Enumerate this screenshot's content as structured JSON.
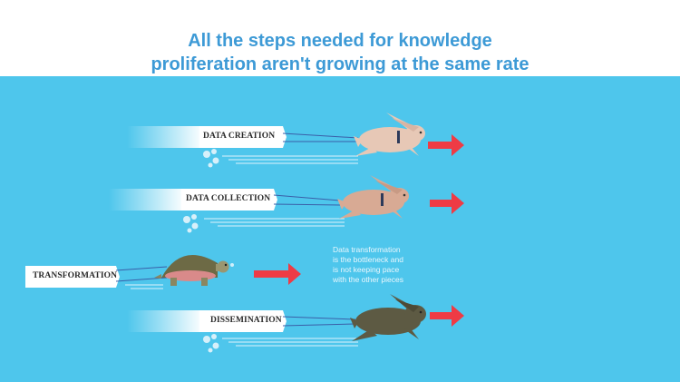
{
  "title": {
    "line1": "All the steps needed for knowledge",
    "line2": "proliferation aren't growing at the same rate"
  },
  "steps": [
    {
      "label": "DATA CREATION",
      "animal": "rabbit-icon",
      "color": "#e7c8b6"
    },
    {
      "label": "DATA COLLECTION",
      "animal": "rabbit-icon",
      "color": "#d8aa94"
    },
    {
      "label": "TRANSFORMATION",
      "animal": "tortoise-icon",
      "color": "#6d6a45"
    },
    {
      "label": "DISSEMINATION",
      "animal": "rabbit-icon",
      "color": "#5d5a43"
    }
  ],
  "note": {
    "lines": [
      "Data transformation",
      "is the bottleneck and",
      "is not keeping pace",
      "with the other pieces"
    ]
  },
  "colors": {
    "title": "#3d9ad6",
    "background": "#4ec6ec",
    "arrow": "#ee3b45"
  }
}
